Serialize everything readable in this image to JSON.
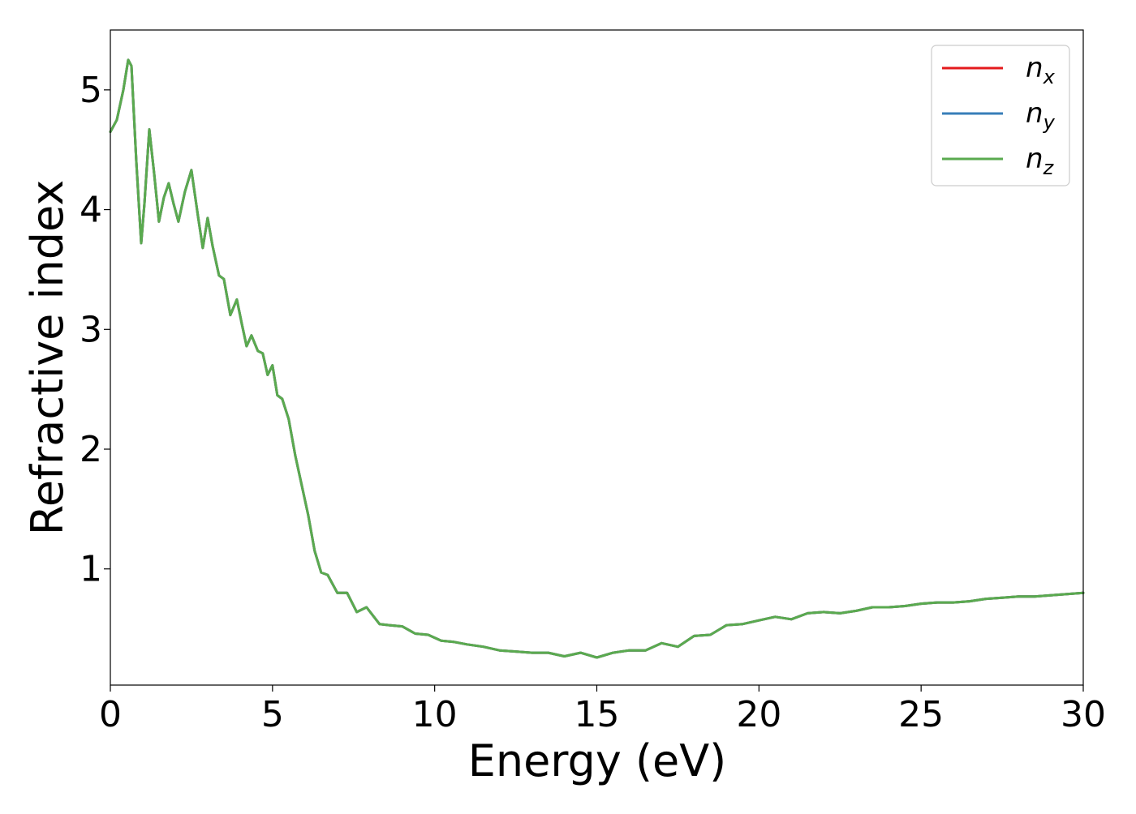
{
  "chart_data": {
    "type": "line",
    "title": "",
    "xlabel": "Energy (eV)",
    "ylabel": "Refractive index",
    "xlim": [
      0,
      30
    ],
    "ylim": [
      0.03,
      5.5
    ],
    "xticks": [
      0,
      5,
      10,
      15,
      20,
      25,
      30
    ],
    "yticks": [
      1,
      2,
      3,
      4,
      5
    ],
    "grid": false,
    "legend_position": "top-right",
    "series": [
      {
        "name": "n_x",
        "label_base": "n",
        "label_sub": "x",
        "color": "#e41a1c",
        "x": [
          0,
          0.2,
          0.4,
          0.55,
          0.65,
          0.8,
          0.95,
          1.05,
          1.2,
          1.35,
          1.5,
          1.65,
          1.8,
          1.95,
          2.1,
          2.3,
          2.5,
          2.7,
          2.85,
          3.0,
          3.15,
          3.35,
          3.5,
          3.7,
          3.9,
          4.05,
          4.2,
          4.35,
          4.55,
          4.7,
          4.85,
          5.0,
          5.15,
          5.3,
          5.5,
          5.7,
          5.9,
          6.1,
          6.3,
          6.5,
          6.7,
          7.0,
          7.3,
          7.6,
          7.9,
          8.3,
          8.6,
          9.0,
          9.4,
          9.8,
          10.2,
          10.6,
          11.0,
          11.5,
          12.0,
          12.5,
          13.0,
          13.5,
          14.0,
          14.5,
          15.0,
          15.5,
          16.0,
          16.5,
          17.0,
          17.5,
          18.0,
          18.5,
          19.0,
          19.5,
          20.0,
          20.5,
          21.0,
          21.5,
          22.0,
          22.5,
          23.0,
          23.5,
          24.0,
          24.5,
          25.0,
          25.5,
          26.0,
          26.5,
          27.0,
          27.5,
          28.0,
          28.5,
          29.0,
          29.5,
          30.0
        ],
        "values": [
          4.65,
          4.75,
          5.0,
          5.25,
          5.2,
          4.4,
          3.72,
          4.05,
          4.67,
          4.3,
          3.9,
          4.1,
          4.22,
          4.05,
          3.9,
          4.15,
          4.33,
          3.95,
          3.68,
          3.93,
          3.7,
          3.45,
          3.42,
          3.12,
          3.25,
          3.05,
          2.86,
          2.95,
          2.82,
          2.8,
          2.62,
          2.7,
          2.45,
          2.42,
          2.25,
          1.95,
          1.7,
          1.45,
          1.15,
          0.97,
          0.95,
          0.8,
          0.8,
          0.64,
          0.68,
          0.54,
          0.53,
          0.52,
          0.46,
          0.45,
          0.4,
          0.39,
          0.37,
          0.35,
          0.32,
          0.31,
          0.3,
          0.3,
          0.27,
          0.3,
          0.26,
          0.3,
          0.32,
          0.32,
          0.38,
          0.35,
          0.44,
          0.45,
          0.53,
          0.54,
          0.57,
          0.6,
          0.58,
          0.63,
          0.64,
          0.63,
          0.65,
          0.68,
          0.68,
          0.69,
          0.71,
          0.72,
          0.72,
          0.73,
          0.75,
          0.76,
          0.77,
          0.77,
          0.78,
          0.79,
          0.8
        ]
      },
      {
        "name": "n_y",
        "label_base": "n",
        "label_sub": "y",
        "color": "#377eb8",
        "x": [
          0,
          0.2,
          0.4,
          0.55,
          0.65,
          0.8,
          0.95,
          1.05,
          1.2,
          1.35,
          1.5,
          1.65,
          1.8,
          1.95,
          2.1,
          2.3,
          2.5,
          2.7,
          2.85,
          3.0,
          3.15,
          3.35,
          3.5,
          3.7,
          3.9,
          4.05,
          4.2,
          4.35,
          4.55,
          4.7,
          4.85,
          5.0,
          5.15,
          5.3,
          5.5,
          5.7,
          5.9,
          6.1,
          6.3,
          6.5,
          6.7,
          7.0,
          7.3,
          7.6,
          7.9,
          8.3,
          8.6,
          9.0,
          9.4,
          9.8,
          10.2,
          10.6,
          11.0,
          11.5,
          12.0,
          12.5,
          13.0,
          13.5,
          14.0,
          14.5,
          15.0,
          15.5,
          16.0,
          16.5,
          17.0,
          17.5,
          18.0,
          18.5,
          19.0,
          19.5,
          20.0,
          20.5,
          21.0,
          21.5,
          22.0,
          22.5,
          23.0,
          23.5,
          24.0,
          24.5,
          25.0,
          25.5,
          26.0,
          26.5,
          27.0,
          27.5,
          28.0,
          28.5,
          29.0,
          29.5,
          30.0
        ],
        "values": [
          4.65,
          4.75,
          5.0,
          5.25,
          5.2,
          4.4,
          3.72,
          4.05,
          4.67,
          4.3,
          3.9,
          4.1,
          4.22,
          4.05,
          3.9,
          4.15,
          4.33,
          3.95,
          3.68,
          3.93,
          3.7,
          3.45,
          3.42,
          3.12,
          3.25,
          3.05,
          2.86,
          2.95,
          2.82,
          2.8,
          2.62,
          2.7,
          2.45,
          2.42,
          2.25,
          1.95,
          1.7,
          1.45,
          1.15,
          0.97,
          0.95,
          0.8,
          0.8,
          0.64,
          0.68,
          0.54,
          0.53,
          0.52,
          0.46,
          0.45,
          0.4,
          0.39,
          0.37,
          0.35,
          0.32,
          0.31,
          0.3,
          0.3,
          0.27,
          0.3,
          0.26,
          0.3,
          0.32,
          0.32,
          0.38,
          0.35,
          0.44,
          0.45,
          0.53,
          0.54,
          0.57,
          0.6,
          0.58,
          0.63,
          0.64,
          0.63,
          0.65,
          0.68,
          0.68,
          0.69,
          0.71,
          0.72,
          0.72,
          0.73,
          0.75,
          0.76,
          0.77,
          0.77,
          0.78,
          0.79,
          0.8
        ]
      },
      {
        "name": "n_z",
        "label_base": "n",
        "label_sub": "z",
        "color": "#5aaa4f",
        "x": [
          0,
          0.2,
          0.4,
          0.55,
          0.65,
          0.8,
          0.95,
          1.05,
          1.2,
          1.35,
          1.5,
          1.65,
          1.8,
          1.95,
          2.1,
          2.3,
          2.5,
          2.7,
          2.85,
          3.0,
          3.15,
          3.35,
          3.5,
          3.7,
          3.9,
          4.05,
          4.2,
          4.35,
          4.55,
          4.7,
          4.85,
          5.0,
          5.15,
          5.3,
          5.5,
          5.7,
          5.9,
          6.1,
          6.3,
          6.5,
          6.7,
          7.0,
          7.3,
          7.6,
          7.9,
          8.3,
          8.6,
          9.0,
          9.4,
          9.8,
          10.2,
          10.6,
          11.0,
          11.5,
          12.0,
          12.5,
          13.0,
          13.5,
          14.0,
          14.5,
          15.0,
          15.5,
          16.0,
          16.5,
          17.0,
          17.5,
          18.0,
          18.5,
          19.0,
          19.5,
          20.0,
          20.5,
          21.0,
          21.5,
          22.0,
          22.5,
          23.0,
          23.5,
          24.0,
          24.5,
          25.0,
          25.5,
          26.0,
          26.5,
          27.0,
          27.5,
          28.0,
          28.5,
          29.0,
          29.5,
          30.0
        ],
        "values": [
          4.65,
          4.75,
          5.0,
          5.25,
          5.2,
          4.4,
          3.72,
          4.05,
          4.67,
          4.3,
          3.9,
          4.1,
          4.22,
          4.05,
          3.9,
          4.15,
          4.33,
          3.95,
          3.68,
          3.93,
          3.7,
          3.45,
          3.42,
          3.12,
          3.25,
          3.05,
          2.86,
          2.95,
          2.82,
          2.8,
          2.62,
          2.7,
          2.45,
          2.42,
          2.25,
          1.95,
          1.7,
          1.45,
          1.15,
          0.97,
          0.95,
          0.8,
          0.8,
          0.64,
          0.68,
          0.54,
          0.53,
          0.52,
          0.46,
          0.45,
          0.4,
          0.39,
          0.37,
          0.35,
          0.32,
          0.31,
          0.3,
          0.3,
          0.27,
          0.3,
          0.26,
          0.3,
          0.32,
          0.32,
          0.38,
          0.35,
          0.44,
          0.45,
          0.53,
          0.54,
          0.57,
          0.6,
          0.58,
          0.63,
          0.64,
          0.63,
          0.65,
          0.68,
          0.68,
          0.69,
          0.71,
          0.72,
          0.72,
          0.73,
          0.75,
          0.76,
          0.77,
          0.77,
          0.78,
          0.79,
          0.8
        ]
      }
    ]
  }
}
